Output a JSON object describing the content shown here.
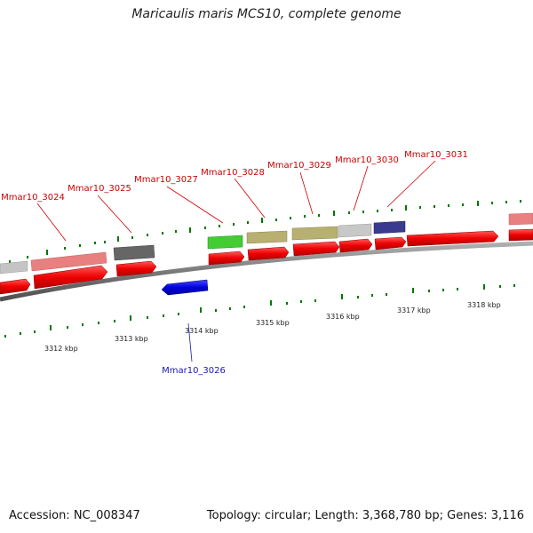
{
  "title": "Maricaulis maris MCS10, complete genome",
  "footer": {
    "accession": "Accession: NC_008347",
    "summary": "Topology: circular; Length: 3,368,780 bp; Genes: 3,116"
  },
  "colors": {
    "forward_cds": "#ee0000",
    "reverse_cds": "#0000dd",
    "backbone": "#808080",
    "tick": "#007700",
    "label_red": "#cc0000",
    "label_blue": "#1a1aaa"
  },
  "scale_labels": [
    "3312 kbp",
    "3313 kbp",
    "3314 kbp",
    "3315 kbp",
    "3316 kbp",
    "3317 kbp",
    "3318 kbp"
  ],
  "gene_labels": {
    "g3024": "Mmar10_3024",
    "g3025": "Mmar10_3025",
    "g3026": "Mmar10_3026",
    "g3027": "Mmar10_3027",
    "g3028": "Mmar10_3028",
    "g3029": "Mmar10_3029",
    "g3030": "Mmar10_3030",
    "g3031": "Mmar10_3031"
  }
}
